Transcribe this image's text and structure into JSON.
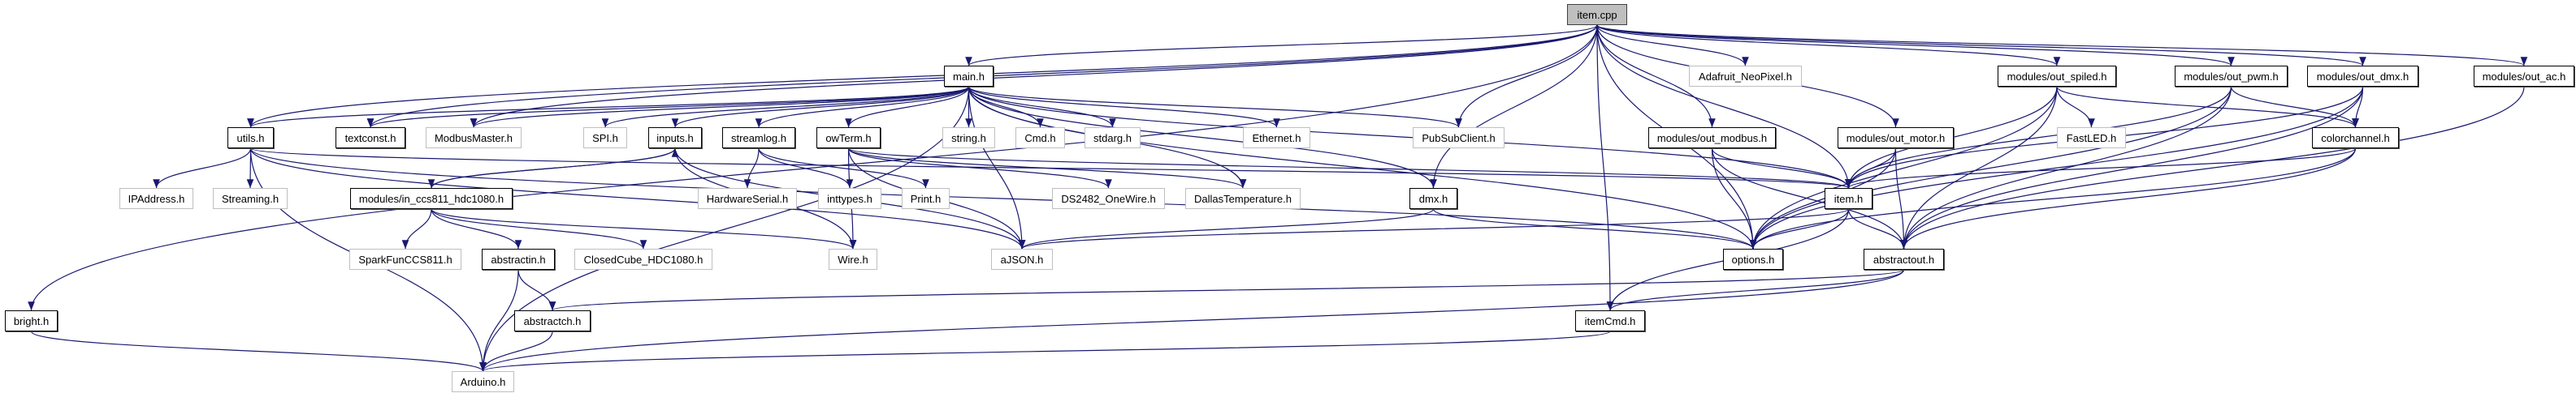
{
  "graph": {
    "edge_color": "#191970",
    "root_fill": "#bfbfbf",
    "external_border": "#bfbfbf",
    "nodes": [
      {
        "id": "item_cpp",
        "label": "item.cpp",
        "kind": "root"
      },
      {
        "id": "main_h",
        "label": "main.h",
        "kind": "local"
      },
      {
        "id": "adafruit",
        "label": "Adafruit_NeoPixel.h",
        "kind": "external"
      },
      {
        "id": "out_spiled",
        "label": "modules/out_spiled.h",
        "kind": "local"
      },
      {
        "id": "out_pwm",
        "label": "modules/out_pwm.h",
        "kind": "local"
      },
      {
        "id": "out_dmx",
        "label": "modules/out_dmx.h",
        "kind": "local"
      },
      {
        "id": "out_ac",
        "label": "modules/out_ac.h",
        "kind": "local"
      },
      {
        "id": "utils_h",
        "label": "utils.h",
        "kind": "local"
      },
      {
        "id": "textconst_h",
        "label": "textconst.h",
        "kind": "local"
      },
      {
        "id": "modbusmaster",
        "label": "ModbusMaster.h",
        "kind": "external"
      },
      {
        "id": "spi_h",
        "label": "SPI.h",
        "kind": "external"
      },
      {
        "id": "inputs_h",
        "label": "inputs.h",
        "kind": "local"
      },
      {
        "id": "streamlog_h",
        "label": "streamlog.h",
        "kind": "local"
      },
      {
        "id": "owterm_h",
        "label": "owTerm.h",
        "kind": "local"
      },
      {
        "id": "string_h",
        "label": "string.h",
        "kind": "external"
      },
      {
        "id": "cmd_h",
        "label": "Cmd.h",
        "kind": "external"
      },
      {
        "id": "stdarg_h",
        "label": "stdarg.h",
        "kind": "external"
      },
      {
        "id": "ethernet_h",
        "label": "Ethernet.h",
        "kind": "external"
      },
      {
        "id": "pubsub",
        "label": "PubSubClient.h",
        "kind": "external"
      },
      {
        "id": "out_modbus",
        "label": "modules/out_modbus.h",
        "kind": "local"
      },
      {
        "id": "out_motor",
        "label": "modules/out_motor.h",
        "kind": "local"
      },
      {
        "id": "fastled",
        "label": "FastLED.h",
        "kind": "external"
      },
      {
        "id": "colorchannel",
        "label": "colorchannel.h",
        "kind": "local"
      },
      {
        "id": "ipaddress",
        "label": "IPAddress.h",
        "kind": "external"
      },
      {
        "id": "streaming",
        "label": "Streaming.h",
        "kind": "external"
      },
      {
        "id": "in_ccs811",
        "label": "modules/in_ccs811_hdc1080.h",
        "kind": "local"
      },
      {
        "id": "hwserial",
        "label": "HardwareSerial.h",
        "kind": "external"
      },
      {
        "id": "inttypes",
        "label": "inttypes.h",
        "kind": "external"
      },
      {
        "id": "print_h",
        "label": "Print.h",
        "kind": "external"
      },
      {
        "id": "ds2482",
        "label": "DS2482_OneWire.h",
        "kind": "external"
      },
      {
        "id": "dallas",
        "label": "DallasTemperature.h",
        "kind": "external"
      },
      {
        "id": "dmx_h",
        "label": "dmx.h",
        "kind": "local"
      },
      {
        "id": "item_h",
        "label": "item.h",
        "kind": "local"
      },
      {
        "id": "sparkfun",
        "label": "SparkFunCCS811.h",
        "kind": "external"
      },
      {
        "id": "abstractin",
        "label": "abstractin.h",
        "kind": "local"
      },
      {
        "id": "closedcube",
        "label": "ClosedCube_HDC1080.h",
        "kind": "external"
      },
      {
        "id": "wire_h",
        "label": "Wire.h",
        "kind": "external"
      },
      {
        "id": "ajson",
        "label": "aJSON.h",
        "kind": "external"
      },
      {
        "id": "options_h",
        "label": "options.h",
        "kind": "local"
      },
      {
        "id": "abstractout",
        "label": "abstractout.h",
        "kind": "local"
      },
      {
        "id": "bright_h",
        "label": "bright.h",
        "kind": "local"
      },
      {
        "id": "abstractch",
        "label": "abstractch.h",
        "kind": "local"
      },
      {
        "id": "itemcmd",
        "label": "itemCmd.h",
        "kind": "local"
      },
      {
        "id": "arduino",
        "label": "Arduino.h",
        "kind": "external"
      }
    ],
    "edges": [
      [
        "item_cpp",
        "main_h"
      ],
      [
        "item_cpp",
        "utils_h"
      ],
      [
        "item_cpp",
        "bright_h"
      ],
      [
        "item_cpp",
        "textconst_h"
      ],
      [
        "item_cpp",
        "modbusmaster"
      ],
      [
        "item_cpp",
        "pubsub"
      ],
      [
        "item_cpp",
        "adafruit"
      ],
      [
        "item_cpp",
        "dmx_h"
      ],
      [
        "item_cpp",
        "itemcmd"
      ],
      [
        "item_cpp",
        "options_h"
      ],
      [
        "item_cpp",
        "item_h"
      ],
      [
        "item_cpp",
        "out_modbus"
      ],
      [
        "item_cpp",
        "out_motor"
      ],
      [
        "item_cpp",
        "out_spiled"
      ],
      [
        "item_cpp",
        "out_pwm"
      ],
      [
        "item_cpp",
        "out_dmx"
      ],
      [
        "item_cpp",
        "out_ac"
      ],
      [
        "main_h",
        "utils_h"
      ],
      [
        "main_h",
        "textconst_h"
      ],
      [
        "main_h",
        "modbusmaster"
      ],
      [
        "main_h",
        "spi_h"
      ],
      [
        "main_h",
        "inputs_h"
      ],
      [
        "main_h",
        "streamlog_h"
      ],
      [
        "main_h",
        "owterm_h"
      ],
      [
        "main_h",
        "string_h"
      ],
      [
        "main_h",
        "cmd_h"
      ],
      [
        "main_h",
        "stdarg_h"
      ],
      [
        "main_h",
        "ethernet_h"
      ],
      [
        "main_h",
        "pubsub"
      ],
      [
        "main_h",
        "dmx_h"
      ],
      [
        "main_h",
        "dallas"
      ],
      [
        "main_h",
        "item_h"
      ],
      [
        "main_h",
        "options_h"
      ],
      [
        "main_h",
        "ajson"
      ],
      [
        "main_h",
        "arduino"
      ],
      [
        "utils_h",
        "ipaddress"
      ],
      [
        "utils_h",
        "streaming"
      ],
      [
        "utils_h",
        "arduino"
      ],
      [
        "utils_h",
        "ajson"
      ],
      [
        "utils_h",
        "item_h"
      ],
      [
        "utils_h",
        "options_h"
      ],
      [
        "inputs_h",
        "in_ccs811"
      ],
      [
        "inputs_h",
        "ajson"
      ],
      [
        "inputs_h",
        "wire_h"
      ],
      [
        "in_ccs811",
        "inputs_h"
      ],
      [
        "in_ccs811",
        "sparkfun"
      ],
      [
        "in_ccs811",
        "abstractin"
      ],
      [
        "in_ccs811",
        "closedcube"
      ],
      [
        "in_ccs811",
        "wire_h"
      ],
      [
        "streamlog_h",
        "hwserial"
      ],
      [
        "streamlog_h",
        "inttypes"
      ],
      [
        "streamlog_h",
        "print_h"
      ],
      [
        "owterm_h",
        "ds2482"
      ],
      [
        "owterm_h",
        "dallas"
      ],
      [
        "owterm_h",
        "ajson"
      ],
      [
        "owterm_h",
        "wire_h"
      ],
      [
        "owterm_h",
        "item_h"
      ],
      [
        "abstractin",
        "abstractch"
      ],
      [
        "abstractin",
        "arduino"
      ],
      [
        "abstractch",
        "arduino"
      ],
      [
        "bright_h",
        "arduino"
      ],
      [
        "dmx_h",
        "ajson"
      ],
      [
        "dmx_h",
        "options_h"
      ],
      [
        "item_h",
        "ajson"
      ],
      [
        "item_h",
        "options_h"
      ],
      [
        "item_h",
        "abstractout"
      ],
      [
        "item_h",
        "itemcmd"
      ],
      [
        "abstractout",
        "abstractch"
      ],
      [
        "abstractout",
        "itemcmd"
      ],
      [
        "abstractout",
        "arduino"
      ],
      [
        "itemcmd",
        "arduino"
      ],
      [
        "out_modbus",
        "item_h"
      ],
      [
        "out_modbus",
        "options_h"
      ],
      [
        "out_modbus",
        "abstractout"
      ],
      [
        "out_motor",
        "item_h"
      ],
      [
        "out_motor",
        "options_h"
      ],
      [
        "out_motor",
        "abstractout"
      ],
      [
        "out_spiled",
        "item_h"
      ],
      [
        "out_spiled",
        "options_h"
      ],
      [
        "out_spiled",
        "fastled"
      ],
      [
        "out_spiled",
        "abstractout"
      ],
      [
        "out_spiled",
        "colorchannel"
      ],
      [
        "out_pwm",
        "item_h"
      ],
      [
        "out_pwm",
        "options_h"
      ],
      [
        "out_pwm",
        "colorchannel"
      ],
      [
        "out_pwm",
        "abstractout"
      ],
      [
        "out_dmx",
        "item_h"
      ],
      [
        "out_dmx",
        "colorchannel"
      ],
      [
        "out_dmx",
        "options_h"
      ],
      [
        "out_dmx",
        "abstractout"
      ],
      [
        "out_ac",
        "abstractout"
      ],
      [
        "colorchannel",
        "item_h"
      ],
      [
        "colorchannel",
        "options_h"
      ],
      [
        "colorchannel",
        "abstractout"
      ]
    ]
  }
}
